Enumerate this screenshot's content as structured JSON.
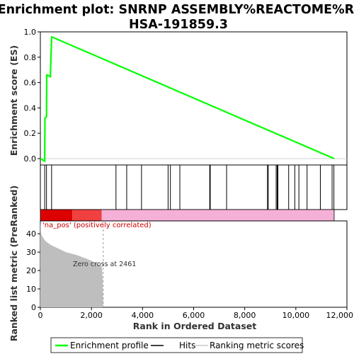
{
  "chart_data": {
    "type": "line",
    "title_line1": "Enrichment plot: SNRNP ASSEMBLY%REACTOME%R-",
    "title_line2": "HSA-191859.3",
    "ylabel_top": "Enrichment score (ES)",
    "ylabel_bottom": "Ranked list metric (PreRanked)",
    "xlabel": "Rank in Ordered Dataset",
    "xlim": [
      0,
      12000
    ],
    "es_ylim": [
      -0.05,
      1.0
    ],
    "metric_ylim": [
      0,
      47
    ],
    "x_ticks": [
      0,
      2000,
      4000,
      6000,
      8000,
      10000,
      12000
    ],
    "x_tick_labels": [
      "0",
      "2,000",
      "4,000",
      "6,000",
      "8,000",
      "10,000",
      "12,000"
    ],
    "es_ticks": [
      0.0,
      0.2,
      0.4,
      0.6,
      0.8,
      1.0
    ],
    "es_tick_labels": [
      "0.0",
      "0.2",
      "0.4",
      "0.6",
      "0.8",
      "1.0"
    ],
    "metric_ticks": [
      0,
      10,
      20,
      30,
      40
    ],
    "metric_tick_labels": [
      "0",
      "10",
      "20",
      "30",
      "40"
    ],
    "total_genes": 11500,
    "enrichment_profile": {
      "x": [
        0,
        170,
        180,
        240,
        250,
        380,
        390,
        440,
        450,
        11500
      ],
      "y": [
        0.0,
        -0.02,
        0.32,
        0.33,
        0.66,
        0.65,
        0.64,
        0.95,
        0.96,
        0.0
      ]
    },
    "hits": [
      170,
      240,
      440,
      2960,
      3380,
      3960,
      5000,
      5090,
      5460,
      6630,
      6650,
      7290,
      8890,
      8920,
      9230,
      9270,
      9300,
      9720,
      9960,
      10120,
      10440,
      10960,
      11420,
      11490
    ],
    "ranking_metric": {
      "x": [
        0,
        30,
        100,
        200,
        400,
        700,
        1000,
        1400,
        1800,
        2200,
        2400,
        2420,
        2440,
        2461
      ],
      "y": [
        47,
        40,
        38,
        36,
        34,
        32,
        30,
        28.5,
        26.5,
        24,
        22,
        20,
        15,
        0
      ]
    },
    "zero_cross_label": "Zero cross at 2461",
    "positive_label": "'na_pos' (positively correlated)",
    "legend": [
      {
        "label": "Enrichment profile",
        "color": "#00ff00"
      },
      {
        "label": "Hits",
        "color": "#000000"
      },
      {
        "label": "Ranking metric scores",
        "color": "#c8c8c8"
      }
    ],
    "colors": {
      "profile": "#00ff00",
      "bar_dark_red": "#dd0000",
      "bar_red": "#f04040",
      "bar_pink": "#f5b0d8",
      "metric_fill": "#bebebe"
    },
    "color_bar_segments": [
      {
        "start": 0,
        "end": 1250,
        "color": "#dd0000"
      },
      {
        "start": 1250,
        "end": 2400,
        "color": "#f04040"
      },
      {
        "start": 2400,
        "end": 11500,
        "color": "#f5b0d8"
      }
    ]
  }
}
